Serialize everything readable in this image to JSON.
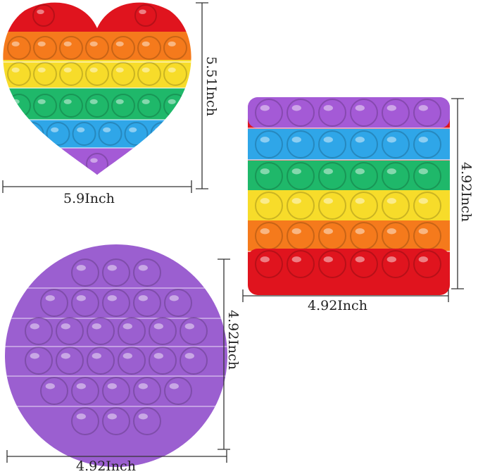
{
  "labels": {
    "heart_height": "5.51Inch",
    "heart_width": "5.9Inch",
    "square_height": "4.92Inch",
    "square_width": "4.92Inch",
    "circle_height": "4.92Inch",
    "circle_width": "4.92Inch"
  },
  "colors": {
    "red": "#e0141e",
    "orange": "#f57a1c",
    "yellow": "#f7dc2a",
    "green": "#1fb86a",
    "blue": "#2fa6e8",
    "purple": "#a45ad6",
    "circle_purple": "#9b5fd0"
  }
}
